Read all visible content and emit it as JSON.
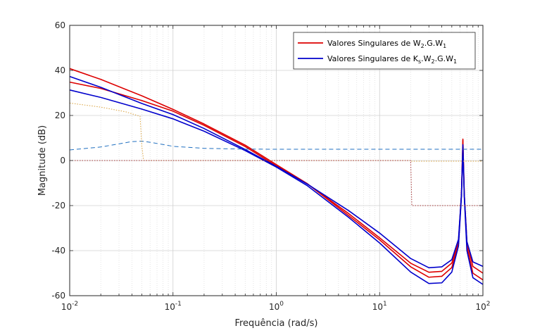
{
  "chart_data": {
    "type": "line",
    "xscale": "log",
    "xlim": [
      0.01,
      100
    ],
    "ylim": [
      -60,
      60
    ],
    "xlabel": "Frequência (rad/s)",
    "ylabel": "Magnitude (dB)",
    "grid": true,
    "legend_position": "top-right",
    "xtick_labels": [
      {
        "base": "10",
        "exp": "-2",
        "x": 0.01
      },
      {
        "base": "10",
        "exp": "-1",
        "x": 0.1
      },
      {
        "base": "10",
        "exp": "0",
        "x": 1
      },
      {
        "base": "10",
        "exp": "1",
        "x": 10
      },
      {
        "base": "10",
        "exp": "2",
        "x": 100
      }
    ],
    "ytick_labels": [
      "60",
      "40",
      "20",
      "0",
      "-20",
      "-40",
      "-60"
    ],
    "legend": [
      {
        "prefix": "Valores Singulares de W",
        "parts": [
          [
            "2",
            "sub"
          ],
          [
            ".G.W",
            "n"
          ],
          [
            "1",
            "sub"
          ]
        ],
        "color": "#dd0000"
      },
      {
        "prefix": "Valores Singulares de K",
        "parts": [
          [
            "s",
            "sub"
          ],
          [
            ".W",
            "n"
          ],
          [
            "2",
            "sub"
          ],
          [
            ".G.W",
            "n"
          ],
          [
            "1",
            "sub"
          ]
        ],
        "color": "#0000cc"
      }
    ],
    "series": [
      {
        "color": "#dd0000",
        "width": 1.6,
        "dash": "",
        "points": [
          [
            0.01,
            40.8
          ],
          [
            0.02,
            36
          ],
          [
            0.05,
            28.7
          ],
          [
            0.1,
            22.7
          ],
          [
            0.2,
            16.2
          ],
          [
            0.5,
            6.8
          ],
          [
            1,
            -1.8
          ],
          [
            2,
            -10.3
          ],
          [
            5,
            -24.4
          ],
          [
            10,
            -35.2
          ],
          [
            20,
            -47.2
          ],
          [
            30,
            -51.8
          ],
          [
            40,
            -51.4
          ],
          [
            50,
            -47.5
          ],
          [
            58,
            -37
          ],
          [
            62,
            -15
          ],
          [
            64,
            9.5
          ],
          [
            66,
            -15
          ],
          [
            70,
            -38
          ],
          [
            80,
            -50
          ],
          [
            100,
            -53
          ]
        ]
      },
      {
        "color": "#dd0000",
        "width": 1.6,
        "dash": "",
        "points": [
          [
            0.01,
            34.8
          ],
          [
            0.02,
            32
          ],
          [
            0.05,
            26.6
          ],
          [
            0.1,
            21.9
          ],
          [
            0.2,
            15.6
          ],
          [
            0.5,
            6.2
          ],
          [
            1,
            -2.4
          ],
          [
            2,
            -10.4
          ],
          [
            5,
            -23.5
          ],
          [
            10,
            -34.3
          ],
          [
            20,
            -45.6
          ],
          [
            30,
            -49.6
          ],
          [
            40,
            -49.2
          ],
          [
            50,
            -45.5
          ],
          [
            58,
            -36
          ],
          [
            62,
            -15
          ],
          [
            64,
            9
          ],
          [
            66,
            -15
          ],
          [
            70,
            -36
          ],
          [
            80,
            -47
          ],
          [
            100,
            -50
          ]
        ]
      },
      {
        "color": "#0000cc",
        "width": 1.6,
        "dash": "",
        "points": [
          [
            0.01,
            37.3
          ],
          [
            0.02,
            32.5
          ],
          [
            0.05,
            25.3
          ],
          [
            0.1,
            20.4
          ],
          [
            0.2,
            14.2
          ],
          [
            0.5,
            4.9
          ],
          [
            1,
            -2.6
          ],
          [
            2,
            -10.5
          ],
          [
            5,
            -22.2
          ],
          [
            10,
            -32.2
          ],
          [
            20,
            -43.5
          ],
          [
            30,
            -47.6
          ],
          [
            40,
            -47.2
          ],
          [
            50,
            -44
          ],
          [
            58,
            -35
          ],
          [
            62,
            -15
          ],
          [
            64,
            7
          ],
          [
            66,
            -15
          ],
          [
            70,
            -36
          ],
          [
            80,
            -45
          ],
          [
            100,
            -47
          ]
        ]
      },
      {
        "color": "#0000cc",
        "width": 1.6,
        "dash": "",
        "points": [
          [
            0.01,
            31.3
          ],
          [
            0.02,
            28
          ],
          [
            0.05,
            22.8
          ],
          [
            0.1,
            18.5
          ],
          [
            0.2,
            13
          ],
          [
            0.5,
            4.4
          ],
          [
            1,
            -2.9
          ],
          [
            2,
            -11.2
          ],
          [
            5,
            -25.2
          ],
          [
            10,
            -36.6
          ],
          [
            20,
            -49.5
          ],
          [
            30,
            -54.6
          ],
          [
            40,
            -54.3
          ],
          [
            50,
            -49.5
          ],
          [
            58,
            -38
          ],
          [
            62,
            -16
          ],
          [
            64,
            5.5
          ],
          [
            66,
            -16
          ],
          [
            70,
            -40
          ],
          [
            80,
            -52
          ],
          [
            100,
            -55
          ]
        ]
      },
      {
        "color": "#1f6fc0",
        "width": 1.0,
        "dash": "6 4",
        "points": [
          [
            0.01,
            4.7
          ],
          [
            0.02,
            6
          ],
          [
            0.03,
            7.4
          ],
          [
            0.04,
            8.4
          ],
          [
            0.05,
            8.6
          ],
          [
            0.06,
            8.1
          ],
          [
            0.08,
            7.1
          ],
          [
            0.1,
            6.3
          ],
          [
            0.2,
            5.4
          ],
          [
            0.5,
            5.05
          ],
          [
            1,
            5
          ],
          [
            100,
            5
          ]
        ]
      },
      {
        "color": "#d9a03a",
        "width": 1.0,
        "dash": "1.5 2",
        "points": [
          [
            0.01,
            25.5
          ],
          [
            0.02,
            23.7
          ],
          [
            0.035,
            21.6
          ],
          [
            0.048,
            19.6
          ],
          [
            0.05,
            6
          ],
          [
            0.052,
            0
          ],
          [
            1,
            0
          ],
          [
            20,
            0
          ],
          [
            20.01,
            -0.3
          ],
          [
            100,
            -0.3
          ]
        ]
      },
      {
        "color": "#a03030",
        "width": 1.0,
        "dash": "1.5 2",
        "points": [
          [
            0.01,
            0
          ],
          [
            1,
            0
          ],
          [
            20,
            0
          ],
          [
            20.5,
            -20
          ],
          [
            100,
            -20
          ]
        ]
      }
    ]
  }
}
